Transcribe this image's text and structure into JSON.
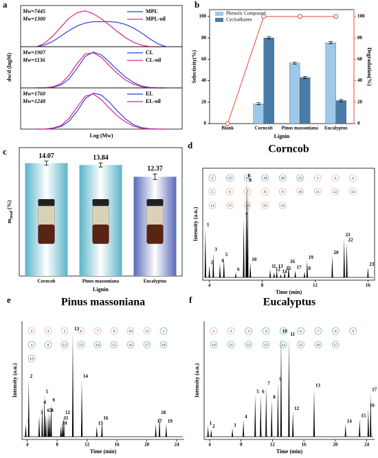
{
  "chart_data": [
    {
      "type": "line",
      "panel_label": "a",
      "xlabel": "Log (Mw)",
      "ylabel": "dw/d (logM)",
      "xlim": [
        0,
        10
      ],
      "ylim": [
        0,
        1.15
      ],
      "x": [
        1,
        1.5,
        2,
        2.5,
        3,
        3.5,
        4,
        4.5,
        5,
        5.5,
        6,
        6.5,
        7,
        7.5,
        8,
        8.5,
        9
      ],
      "subplots": [
        {
          "annotations": [
            "Mw=7445",
            "Mw=1300"
          ],
          "series": [
            {
              "name": "MPL",
              "color": "#2f3fe0",
              "values": [
                0,
                0.05,
                0.15,
                0.3,
                0.45,
                0.58,
                0.66,
                0.7,
                0.7,
                0.7,
                0.68,
                0.62,
                0.52,
                0.38,
                0.22,
                0.08,
                0
              ]
            },
            {
              "name": "MPL-oil",
              "color": "#e0208a",
              "values": [
                0,
                0.1,
                0.3,
                0.55,
                0.8,
                0.95,
                1.0,
                0.92,
                0.78,
                0.6,
                0.42,
                0.25,
                0.12,
                0.04,
                0,
                0,
                0
              ]
            }
          ]
        },
        {
          "annotations": [
            "Mw=1907",
            "Mw=1136"
          ],
          "series": [
            {
              "name": "CL",
              "color": "#2f3fe0",
              "values": [
                0,
                0,
                0.02,
                0.08,
                0.25,
                0.55,
                0.88,
                1.0,
                0.92,
                0.72,
                0.5,
                0.3,
                0.15,
                0.05,
                0.01,
                0,
                0
              ]
            },
            {
              "name": "CL-oil",
              "color": "#e0208a",
              "values": [
                0,
                0,
                0.03,
                0.12,
                0.35,
                0.68,
                0.95,
                0.98,
                0.85,
                0.62,
                0.4,
                0.22,
                0.1,
                0.03,
                0,
                0,
                0
              ]
            }
          ]
        },
        {
          "annotations": [
            "Mw=1760",
            "Mw=1248"
          ],
          "series": [
            {
              "name": "EL",
              "color": "#2f3fe0",
              "values": [
                0,
                0,
                0.02,
                0.07,
                0.22,
                0.5,
                0.85,
                1.0,
                0.95,
                0.75,
                0.5,
                0.28,
                0.12,
                0.04,
                0.01,
                0,
                0
              ]
            },
            {
              "name": "EL-oil",
              "color": "#e0208a",
              "values": [
                0,
                0,
                0.03,
                0.1,
                0.3,
                0.62,
                0.92,
                0.98,
                0.82,
                0.58,
                0.36,
                0.2,
                0.08,
                0.02,
                0,
                0,
                0
              ]
            }
          ]
        }
      ]
    },
    {
      "type": "bar",
      "panel_label": "b",
      "xlabel": "Lignin",
      "ylabel": "Selectivity(%)",
      "y2label": "Degradation(%)",
      "categories": [
        "Blank",
        "Corncob",
        "Pinus massoniana",
        "Eucalyptus"
      ],
      "ylim": [
        0,
        100
      ],
      "yticks": [
        0,
        20,
        40,
        60,
        80,
        100
      ],
      "y2lim": [
        0,
        100
      ],
      "y2ticks": [
        0,
        20,
        40,
        60,
        80,
        100
      ],
      "series": [
        {
          "name": "Phenolic Compound",
          "color": "#9dc8e8",
          "values": [
            null,
            18.5,
            56.5,
            75.5
          ],
          "errors": [
            null,
            1,
            1,
            1
          ]
        },
        {
          "name": "Cycloalkanes",
          "color": "#4a7ca8",
          "values": [
            null,
            80,
            43,
            21.5
          ],
          "errors": [
            null,
            1,
            1,
            1
          ]
        }
      ],
      "line": {
        "color": "#e8433a",
        "axis": "y2",
        "values": [
          0,
          100,
          100,
          100
        ]
      }
    },
    {
      "type": "bar",
      "panel_label": "c",
      "xlabel": "Lignin",
      "ylabel": "m",
      "ylabel_sub": "total",
      "ylabel_unit": "(%)",
      "categories": [
        "Corncob",
        "Pinus massoniana",
        "Eucalyptus"
      ],
      "values": [
        14.07,
        13.84,
        12.37
      ],
      "errors": [
        0.25,
        0.25,
        0.35
      ],
      "colors": [
        "#5ab4c8",
        "#5ab4c8",
        "#5a68b8"
      ],
      "ylim": [
        0,
        16
      ]
    },
    {
      "type": "chromatogram",
      "panel_label": "d",
      "title": "Corncob",
      "xlabel": "Time (min)",
      "ylabel": "Intensity (a.u.)",
      "xlim": [
        3.5,
        16.5
      ],
      "xticks": [
        4,
        8,
        12,
        16
      ],
      "ylim": [
        0,
        1.05
      ],
      "peaks": {
        "labels": [
          "1",
          "2",
          "3",
          "4",
          "5",
          "6",
          "7",
          "8",
          "9",
          "10",
          "11",
          "12",
          "13",
          "14",
          "15",
          "16",
          "17",
          "18",
          "19",
          "20",
          "21",
          "22",
          "23"
        ],
        "x": [
          3.7,
          4.0,
          4.3,
          4.8,
          5.1,
          6.0,
          6.6,
          6.8,
          6.9,
          7.1,
          8.6,
          8.9,
          9.1,
          9.4,
          9.7,
          10.0,
          10.5,
          11.2,
          11.4,
          13.3,
          14.2,
          14.4,
          16.0
        ],
        "values": [
          0.5,
          0.12,
          0.25,
          0.14,
          0.2,
          0.05,
          0.6,
          1.0,
          0.95,
          0.15,
          0.08,
          0.05,
          0.08,
          0.03,
          0.06,
          0.13,
          0.07,
          0.06,
          0.17,
          0.22,
          0.4,
          0.35,
          0.1
        ]
      },
      "structures": {
        "labels": [
          "2",
          "15",
          "16",
          "18",
          "20",
          "22",
          "1",
          "3",
          "4",
          "5",
          "6",
          "7",
          "8",
          "9",
          "10",
          "11",
          "12",
          "13",
          "14",
          "17",
          "19",
          "21",
          "23"
        ],
        "colors": [
          "#4a90c2",
          "#4a90c2",
          "#4a90c2",
          "#4a90c2",
          "#4a90c2",
          "#4a90c2",
          "#e0967a",
          "#e0967a",
          "#e0967a",
          "#e0967a",
          "#e0967a",
          "#e0967a",
          "#e0967a",
          "#e0967a",
          "#e0967a",
          "#e0967a",
          "#e0967a",
          "#e0967a",
          "#e0967a",
          "#e0967a",
          "#e0967a",
          "#e0967a",
          "#e0967a"
        ]
      }
    },
    {
      "type": "chromatogram",
      "panel_label": "e",
      "title": "Pinus massoniana",
      "xlabel": "Time (min)",
      "ylabel": "Intensity (a.u.)",
      "xlim": [
        3.3,
        25
      ],
      "xticks": [
        4,
        8,
        12,
        16,
        20,
        24
      ],
      "ylim": [
        0,
        1.05
      ],
      "peaks": {
        "labels": [
          "1",
          "2",
          "3",
          "4",
          "5",
          "6",
          "7",
          "8",
          "9",
          "10",
          "11",
          "12",
          "13",
          "14",
          "15",
          "16",
          "17",
          "18",
          "19"
        ],
        "x": [
          3.8,
          4.2,
          5.6,
          6.0,
          6.3,
          6.5,
          6.8,
          7.0,
          7.2,
          8.5,
          8.7,
          8.9,
          10.1,
          11.3,
          13.3,
          14.0,
          21.2,
          21.7,
          22.6
        ],
        "values": [
          0.12,
          0.55,
          0.2,
          0.3,
          0.4,
          0.22,
          0.22,
          0.22,
          0.32,
          0.1,
          0.15,
          0.2,
          1.0,
          0.55,
          0.1,
          0.15,
          0.12,
          0.2,
          0.12
        ]
      },
      "structures": {
        "labels": [
          "2",
          "3",
          "5",
          "6",
          "7",
          "9",
          "10",
          "11",
          "1",
          "4",
          "8",
          "12",
          "13",
          "14",
          "15",
          "16",
          "17",
          "18",
          "19"
        ],
        "colors": [
          "#e0967a",
          "#e0967a",
          "#e0967a",
          "#e0967a",
          "#e0967a",
          "#e0967a",
          "#e0967a",
          "#e0967a",
          "#4a90c2",
          "#4a90c2",
          "#4a90c2",
          "#4a90c2",
          "#4a90c2",
          "#4a90c2",
          "#4a90c2",
          "#4a90c2",
          "#4a90c2",
          "#4a90c2",
          "#4a90c2"
        ]
      }
    },
    {
      "type": "chromatogram",
      "panel_label": "f",
      "title": "Eucalyptus",
      "xlabel": "Time (min)",
      "ylabel": "Intensity (a.u.)",
      "xlim": [
        3.3,
        25
      ],
      "xticks": [
        4,
        8,
        12,
        16,
        20,
        24
      ],
      "ylim": [
        0,
        1.05
      ],
      "peaks": {
        "labels": [
          "1",
          "2",
          "3",
          "4",
          "5",
          "6",
          "7",
          "8",
          "9",
          "10",
          "11",
          "12",
          "13",
          "14",
          "15",
          "16",
          "17"
        ],
        "x": [
          3.8,
          4.2,
          6.9,
          8.3,
          9.8,
          10.5,
          11.2,
          11.9,
          12.7,
          13.1,
          14.1,
          14.6,
          17.3,
          21.3,
          23.1,
          24.2,
          24.5
        ],
        "values": [
          0.1,
          0.07,
          0.08,
          0.16,
          0.4,
          0.4,
          0.48,
          0.35,
          0.52,
          0.98,
          0.95,
          0.24,
          0.46,
          0.12,
          0.17,
          0.27,
          0.42
        ]
      },
      "structures": {
        "labels": [
          "1",
          "2",
          "3",
          "4",
          "5",
          "6",
          "7",
          "8",
          "9",
          "10",
          "11",
          "12",
          "13",
          "14",
          "15",
          "16",
          "17"
        ],
        "colors": [
          "#e0967a",
          "#e0967a",
          "#4a90c2",
          "#4a90c2",
          "#4a90c2",
          "#4a90c2",
          "#4a90c2",
          "#4a90c2",
          "#4a90c2",
          "#4a90c2",
          "#4a90c2",
          "#4a90c2",
          "#4a90c2",
          "#4a90c2",
          "#4a90c2",
          "#4a90c2",
          "#4a90c2"
        ]
      }
    }
  ]
}
